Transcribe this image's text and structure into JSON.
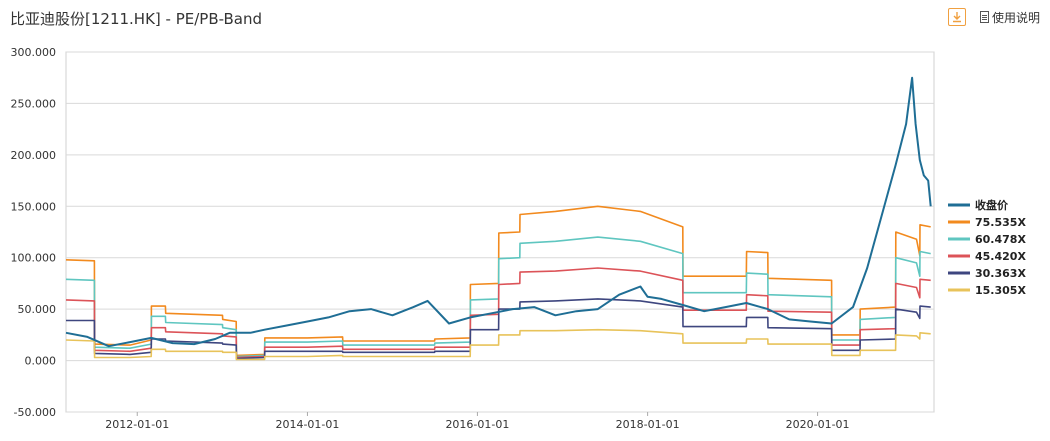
{
  "header": {
    "title": "比亚迪股份[1211.HK] - PE/PB-Band",
    "help_label": "使用说明",
    "download_icon": "download-icon",
    "help_icon": "document-icon"
  },
  "chart_data": {
    "type": "line",
    "ylim": [
      -50,
      300
    ],
    "yticks": [
      "300.000",
      "250.000",
      "200.000",
      "150.000",
      "100.000",
      "50.000",
      "0.000",
      "-50.000"
    ],
    "ytick_values": [
      300,
      250,
      200,
      150,
      100,
      50,
      0,
      -50
    ],
    "xlim": [
      "2011-03-01",
      "2021-05-15"
    ],
    "xticks": [
      "2012-01-01",
      "2014-01-01",
      "2016-01-01",
      "2018-01-01",
      "2020-01-01"
    ],
    "grid": true,
    "legend_position": "right",
    "series": [
      {
        "name": "收盘价",
        "color": "#1f6e95",
        "points": [
          [
            "2011-03-01",
            27
          ],
          [
            "2011-06-01",
            23
          ],
          [
            "2011-09-01",
            14
          ],
          [
            "2011-12-01",
            18
          ],
          [
            "2012-03-01",
            22
          ],
          [
            "2012-06-01",
            17
          ],
          [
            "2012-09-01",
            16
          ],
          [
            "2012-12-01",
            21
          ],
          [
            "2013-02-01",
            27
          ],
          [
            "2013-05-01",
            27
          ],
          [
            "2013-07-01",
            30
          ],
          [
            "2013-10-01",
            34
          ],
          [
            "2014-01-01",
            38
          ],
          [
            "2014-04-01",
            42
          ],
          [
            "2014-07-01",
            48
          ],
          [
            "2014-10-01",
            50
          ],
          [
            "2015-01-01",
            44
          ],
          [
            "2015-04-01",
            52
          ],
          [
            "2015-06-01",
            58
          ],
          [
            "2015-09-01",
            36
          ],
          [
            "2015-12-01",
            42
          ],
          [
            "2016-03-01",
            46
          ],
          [
            "2016-06-01",
            50
          ],
          [
            "2016-09-01",
            52
          ],
          [
            "2016-12-01",
            44
          ],
          [
            "2017-03-01",
            48
          ],
          [
            "2017-06-01",
            50
          ],
          [
            "2017-09-01",
            64
          ],
          [
            "2017-12-01",
            72
          ],
          [
            "2018-01-01",
            62
          ],
          [
            "2018-03-01",
            60
          ],
          [
            "2018-06-01",
            54
          ],
          [
            "2018-09-01",
            48
          ],
          [
            "2018-12-01",
            52
          ],
          [
            "2019-03-01",
            56
          ],
          [
            "2019-06-01",
            50
          ],
          [
            "2019-09-01",
            40
          ],
          [
            "2019-12-01",
            38
          ],
          [
            "2020-03-01",
            36
          ],
          [
            "2020-06-01",
            52
          ],
          [
            "2020-08-01",
            90
          ],
          [
            "2020-10-01",
            140
          ],
          [
            "2020-12-01",
            190
          ],
          [
            "2021-01-15",
            230
          ],
          [
            "2021-02-10",
            275
          ],
          [
            "2021-02-25",
            230
          ],
          [
            "2021-03-15",
            195
          ],
          [
            "2021-04-01",
            180
          ],
          [
            "2021-04-20",
            175
          ],
          [
            "2021-05-01",
            150
          ]
        ]
      },
      {
        "name": "75.535X",
        "color": "#f28a1e",
        "points": [
          [
            "2011-03-01",
            98
          ],
          [
            "2011-07-01",
            97
          ],
          [
            "2011-07-02",
            16
          ],
          [
            "2011-12-01",
            15
          ],
          [
            "2012-03-01",
            20
          ],
          [
            "2012-03-02",
            53
          ],
          [
            "2012-05-01",
            53
          ],
          [
            "2012-05-02",
            46
          ],
          [
            "2013-01-01",
            44
          ],
          [
            "2013-01-02",
            40
          ],
          [
            "2013-03-01",
            38
          ],
          [
            "2013-03-02",
            5
          ],
          [
            "2013-07-01",
            6
          ],
          [
            "2013-07-02",
            22
          ],
          [
            "2014-01-01",
            22
          ],
          [
            "2014-06-01",
            23
          ],
          [
            "2014-06-02",
            19
          ],
          [
            "2015-07-01",
            19
          ],
          [
            "2015-07-02",
            21
          ],
          [
            "2015-12-01",
            22
          ],
          [
            "2015-12-02",
            74
          ],
          [
            "2016-04-01",
            75
          ],
          [
            "2016-04-02",
            124
          ],
          [
            "2016-07-01",
            125
          ],
          [
            "2016-07-02",
            142
          ],
          [
            "2016-12-01",
            145
          ],
          [
            "2017-06-01",
            150
          ],
          [
            "2017-12-01",
            145
          ],
          [
            "2018-06-01",
            130
          ],
          [
            "2018-06-02",
            82
          ],
          [
            "2019-03-01",
            82
          ],
          [
            "2019-03-02",
            106
          ],
          [
            "2019-06-01",
            105
          ],
          [
            "2019-06-02",
            80
          ],
          [
            "2020-03-01",
            78
          ],
          [
            "2020-03-02",
            25
          ],
          [
            "2020-07-01",
            25
          ],
          [
            "2020-07-02",
            50
          ],
          [
            "2020-12-01",
            52
          ],
          [
            "2020-12-02",
            125
          ],
          [
            "2021-03-01",
            118
          ],
          [
            "2021-03-15",
            102
          ],
          [
            "2021-03-16",
            132
          ],
          [
            "2021-05-01",
            130
          ]
        ]
      },
      {
        "name": "60.478X",
        "color": "#5fc6c0",
        "points": [
          [
            "2011-03-01",
            79
          ],
          [
            "2011-07-01",
            78
          ],
          [
            "2011-07-02",
            13
          ],
          [
            "2011-12-01",
            12
          ],
          [
            "2012-03-01",
            16
          ],
          [
            "2012-03-02",
            43
          ],
          [
            "2012-05-01",
            43
          ],
          [
            "2012-05-02",
            37
          ],
          [
            "2013-01-01",
            35
          ],
          [
            "2013-01-02",
            32
          ],
          [
            "2013-03-01",
            30
          ],
          [
            "2013-03-02",
            4
          ],
          [
            "2013-07-01",
            5
          ],
          [
            "2013-07-02",
            18
          ],
          [
            "2014-01-01",
            18
          ],
          [
            "2014-06-01",
            19
          ],
          [
            "2014-06-02",
            15
          ],
          [
            "2015-07-01",
            15
          ],
          [
            "2015-07-02",
            17
          ],
          [
            "2015-12-01",
            18
          ],
          [
            "2015-12-02",
            59
          ],
          [
            "2016-04-01",
            60
          ],
          [
            "2016-04-02",
            99
          ],
          [
            "2016-07-01",
            100
          ],
          [
            "2016-07-02",
            114
          ],
          [
            "2016-12-01",
            116
          ],
          [
            "2017-06-01",
            120
          ],
          [
            "2017-12-01",
            116
          ],
          [
            "2018-06-01",
            104
          ],
          [
            "2018-06-02",
            66
          ],
          [
            "2019-03-01",
            66
          ],
          [
            "2019-03-02",
            85
          ],
          [
            "2019-06-01",
            84
          ],
          [
            "2019-06-02",
            64
          ],
          [
            "2020-03-01",
            62
          ],
          [
            "2020-03-02",
            20
          ],
          [
            "2020-07-01",
            20
          ],
          [
            "2020-07-02",
            40
          ],
          [
            "2020-12-01",
            42
          ],
          [
            "2020-12-02",
            100
          ],
          [
            "2021-03-01",
            95
          ],
          [
            "2021-03-15",
            82
          ],
          [
            "2021-03-16",
            106
          ],
          [
            "2021-05-01",
            104
          ]
        ]
      },
      {
        "name": "45.420X",
        "color": "#dc5358",
        "points": [
          [
            "2011-03-01",
            59
          ],
          [
            "2011-07-01",
            58
          ],
          [
            "2011-07-02",
            10
          ],
          [
            "2011-12-01",
            9
          ],
          [
            "2012-03-01",
            12
          ],
          [
            "2012-03-02",
            32
          ],
          [
            "2012-05-01",
            32
          ],
          [
            "2012-05-02",
            28
          ],
          [
            "2013-01-01",
            26
          ],
          [
            "2013-01-02",
            24
          ],
          [
            "2013-03-01",
            23
          ],
          [
            "2013-03-02",
            3
          ],
          [
            "2013-07-01",
            4
          ],
          [
            "2013-07-02",
            13
          ],
          [
            "2014-01-01",
            13
          ],
          [
            "2014-06-01",
            14
          ],
          [
            "2014-06-02",
            11
          ],
          [
            "2015-07-01",
            11
          ],
          [
            "2015-07-02",
            13
          ],
          [
            "2015-12-01",
            13
          ],
          [
            "2015-12-02",
            44
          ],
          [
            "2016-04-01",
            45
          ],
          [
            "2016-04-02",
            74
          ],
          [
            "2016-07-01",
            75
          ],
          [
            "2016-07-02",
            86
          ],
          [
            "2016-12-01",
            87
          ],
          [
            "2017-06-01",
            90
          ],
          [
            "2017-12-01",
            87
          ],
          [
            "2018-06-01",
            78
          ],
          [
            "2018-06-02",
            49
          ],
          [
            "2019-03-01",
            49
          ],
          [
            "2019-03-02",
            64
          ],
          [
            "2019-06-01",
            63
          ],
          [
            "2019-06-02",
            48
          ],
          [
            "2020-03-01",
            47
          ],
          [
            "2020-03-02",
            15
          ],
          [
            "2020-07-01",
            15
          ],
          [
            "2020-07-02",
            30
          ],
          [
            "2020-12-01",
            31
          ],
          [
            "2020-12-02",
            75
          ],
          [
            "2021-03-01",
            71
          ],
          [
            "2021-03-15",
            61
          ],
          [
            "2021-03-16",
            79
          ],
          [
            "2021-05-01",
            78
          ]
        ]
      },
      {
        "name": "30.363X",
        "color": "#3e467f",
        "points": [
          [
            "2011-03-01",
            39
          ],
          [
            "2011-07-01",
            39
          ],
          [
            "2011-07-02",
            7
          ],
          [
            "2011-12-01",
            6
          ],
          [
            "2012-03-01",
            8
          ],
          [
            "2012-03-02",
            21
          ],
          [
            "2012-05-01",
            21
          ],
          [
            "2012-05-02",
            19
          ],
          [
            "2013-01-01",
            17
          ],
          [
            "2013-01-02",
            16
          ],
          [
            "2013-03-01",
            15
          ],
          [
            "2013-03-02",
            2
          ],
          [
            "2013-07-01",
            3
          ],
          [
            "2013-07-02",
            9
          ],
          [
            "2014-01-01",
            9
          ],
          [
            "2014-06-01",
            9
          ],
          [
            "2014-06-02",
            8
          ],
          [
            "2015-07-01",
            8
          ],
          [
            "2015-07-02",
            9
          ],
          [
            "2015-12-01",
            9
          ],
          [
            "2015-12-02",
            30
          ],
          [
            "2016-04-01",
            30
          ],
          [
            "2016-04-02",
            50
          ],
          [
            "2016-07-01",
            50
          ],
          [
            "2016-07-02",
            57
          ],
          [
            "2016-12-01",
            58
          ],
          [
            "2017-06-01",
            60
          ],
          [
            "2017-12-01",
            58
          ],
          [
            "2018-06-01",
            52
          ],
          [
            "2018-06-02",
            33
          ],
          [
            "2019-03-01",
            33
          ],
          [
            "2019-03-02",
            42
          ],
          [
            "2019-06-01",
            42
          ],
          [
            "2019-06-02",
            32
          ],
          [
            "2020-03-01",
            31
          ],
          [
            "2020-03-02",
            10
          ],
          [
            "2020-07-01",
            10
          ],
          [
            "2020-07-02",
            20
          ],
          [
            "2020-12-01",
            21
          ],
          [
            "2020-12-02",
            50
          ],
          [
            "2021-03-01",
            47
          ],
          [
            "2021-03-15",
            41
          ],
          [
            "2021-03-16",
            53
          ],
          [
            "2021-05-01",
            52
          ]
        ]
      },
      {
        "name": "15.305X",
        "color": "#e8c35a",
        "points": [
          [
            "2011-03-01",
            20
          ],
          [
            "2011-07-01",
            19
          ],
          [
            "2011-07-02",
            3
          ],
          [
            "2011-12-01",
            3
          ],
          [
            "2012-03-01",
            4
          ],
          [
            "2012-03-02",
            11
          ],
          [
            "2012-05-01",
            11
          ],
          [
            "2012-05-02",
            9
          ],
          [
            "2013-01-01",
            9
          ],
          [
            "2013-01-02",
            8
          ],
          [
            "2013-03-01",
            8
          ],
          [
            "2013-03-02",
            1
          ],
          [
            "2013-07-01",
            1
          ],
          [
            "2013-07-02",
            4
          ],
          [
            "2014-01-01",
            4
          ],
          [
            "2014-06-01",
            5
          ],
          [
            "2014-06-02",
            4
          ],
          [
            "2015-07-01",
            4
          ],
          [
            "2015-07-02",
            4
          ],
          [
            "2015-12-01",
            4
          ],
          [
            "2015-12-02",
            15
          ],
          [
            "2016-04-01",
            15
          ],
          [
            "2016-04-02",
            25
          ],
          [
            "2016-07-01",
            25
          ],
          [
            "2016-07-02",
            29
          ],
          [
            "2016-12-01",
            29
          ],
          [
            "2017-06-01",
            30
          ],
          [
            "2017-12-01",
            29
          ],
          [
            "2018-06-01",
            26
          ],
          [
            "2018-06-02",
            17
          ],
          [
            "2019-03-01",
            17
          ],
          [
            "2019-03-02",
            21
          ],
          [
            "2019-06-01",
            21
          ],
          [
            "2019-06-02",
            16
          ],
          [
            "2020-03-01",
            16
          ],
          [
            "2020-03-02",
            5
          ],
          [
            "2020-07-01",
            5
          ],
          [
            "2020-07-02",
            10
          ],
          [
            "2020-12-01",
            10
          ],
          [
            "2020-12-02",
            25
          ],
          [
            "2021-03-01",
            24
          ],
          [
            "2021-03-15",
            21
          ],
          [
            "2021-03-16",
            27
          ],
          [
            "2021-05-01",
            26
          ]
        ]
      }
    ]
  }
}
